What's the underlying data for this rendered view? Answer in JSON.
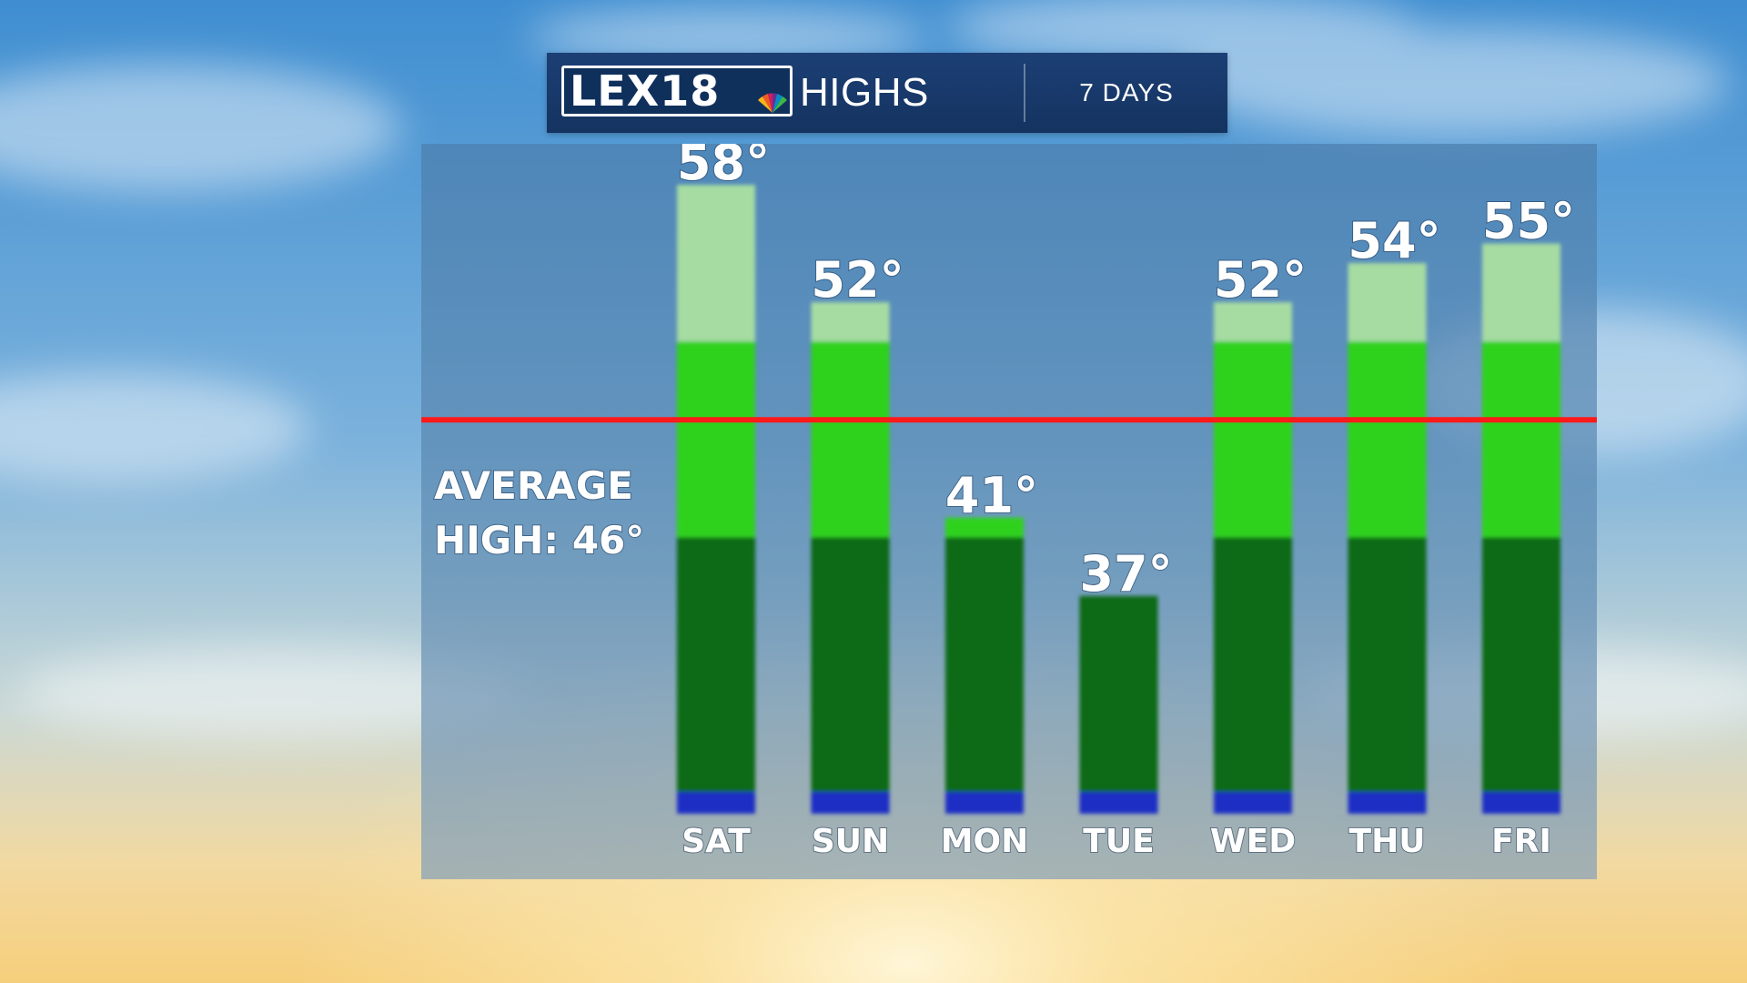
{
  "header": {
    "logo_text": "LEX18",
    "title": "HIGHS",
    "period": "7 DAYS"
  },
  "average": {
    "label_line1": "AVERAGE",
    "label_line2": "HIGH: 46°",
    "value": 46,
    "color": "#ff1a1a"
  },
  "colors": {
    "band_cool": "#0a6a14",
    "band_mild": "#2ed21a",
    "band_warm": "#a6dba2",
    "base": "#1d2fc4"
  },
  "chart_data": {
    "type": "bar",
    "categories": [
      "SAT",
      "SUN",
      "MON",
      "TUE",
      "WED",
      "THU",
      "FRI"
    ],
    "values": [
      58,
      52,
      41,
      37,
      52,
      54,
      55
    ],
    "value_labels": [
      "58°",
      "52°",
      "41°",
      "37°",
      "52°",
      "54°",
      "55°"
    ],
    "bands": [
      40,
      50
    ],
    "ylim": [
      27,
      60
    ],
    "reference_line": 46
  }
}
